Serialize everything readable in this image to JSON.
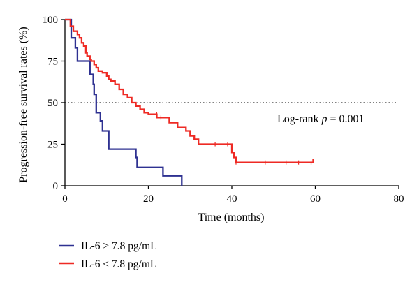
{
  "chart_data": {
    "type": "line",
    "subtype": "kaplan-meier step",
    "title": "",
    "xlabel": "Time (months)",
    "ylabel": "Progression-free survival rates (%)",
    "xlim": [
      0,
      80
    ],
    "ylim": [
      0,
      100
    ],
    "xticks": [
      0,
      20,
      40,
      60,
      80
    ],
    "yticks": [
      0,
      25,
      50,
      75,
      100
    ],
    "xtick_labels": [
      "0",
      "20",
      "40",
      "60",
      "80"
    ],
    "ytick_labels": [
      "0",
      "25",
      "50",
      "75",
      "100"
    ],
    "reference_line": {
      "y": 50,
      "style": "dotted"
    },
    "annotation": {
      "prefix": "Log-rank ",
      "italic": "p",
      "suffix": " = 0.001"
    },
    "legend_position": "bottom-left",
    "series": [
      {
        "name": "IL-6 > 7.8 pg/mL",
        "color": "#2e3191",
        "points": [
          [
            0,
            100
          ],
          [
            1,
            100
          ],
          [
            1.5,
            89
          ],
          [
            2.5,
            83
          ],
          [
            3,
            75
          ],
          [
            6,
            75
          ],
          [
            6,
            67
          ],
          [
            6.8,
            61
          ],
          [
            7,
            55
          ],
          [
            7.5,
            44
          ],
          [
            8,
            44
          ],
          [
            8.5,
            39
          ],
          [
            9,
            33
          ],
          [
            10.5,
            28
          ],
          [
            10.5,
            22
          ],
          [
            17,
            22
          ],
          [
            17,
            17
          ],
          [
            17.3,
            11
          ],
          [
            23.5,
            11
          ],
          [
            23.5,
            6
          ],
          [
            28,
            6
          ],
          [
            28,
            0
          ]
        ],
        "censors": []
      },
      {
        "name": "IL-6 ≤ 7.8 pg/mL",
        "color": "#ee2a24",
        "points": [
          [
            0,
            100
          ],
          [
            1,
            100
          ],
          [
            1.3,
            96
          ],
          [
            2,
            93
          ],
          [
            3,
            91
          ],
          [
            3.5,
            89
          ],
          [
            4,
            86
          ],
          [
            4.5,
            84
          ],
          [
            5,
            80
          ],
          [
            5.3,
            78
          ],
          [
            6,
            76
          ],
          [
            6.3,
            75
          ],
          [
            7,
            73
          ],
          [
            7.5,
            71
          ],
          [
            8,
            69
          ],
          [
            9,
            68
          ],
          [
            10,
            66
          ],
          [
            10.5,
            64
          ],
          [
            11,
            63
          ],
          [
            12,
            61
          ],
          [
            13,
            58
          ],
          [
            14,
            55
          ],
          [
            15,
            53
          ],
          [
            16,
            50
          ],
          [
            17,
            48
          ],
          [
            18,
            46
          ],
          [
            19,
            44
          ],
          [
            20,
            43
          ],
          [
            22,
            43
          ],
          [
            22,
            41
          ],
          [
            25,
            41
          ],
          [
            25,
            38
          ],
          [
            26,
            38
          ],
          [
            27,
            35
          ],
          [
            29,
            33
          ],
          [
            30,
            30
          ],
          [
            31,
            28
          ],
          [
            32,
            25
          ],
          [
            36,
            25
          ],
          [
            40,
            25
          ],
          [
            40,
            20
          ],
          [
            40.5,
            17
          ],
          [
            41,
            17
          ],
          [
            41,
            14
          ],
          [
            59.5,
            14
          ],
          [
            59.5,
            16
          ]
        ],
        "censors": [
          [
            22,
            43
          ],
          [
            23,
            41
          ],
          [
            36,
            25
          ],
          [
            39,
            25
          ],
          [
            41,
            14
          ],
          [
            48,
            14
          ],
          [
            53,
            14
          ],
          [
            56,
            14
          ],
          [
            59,
            14
          ]
        ]
      }
    ]
  }
}
